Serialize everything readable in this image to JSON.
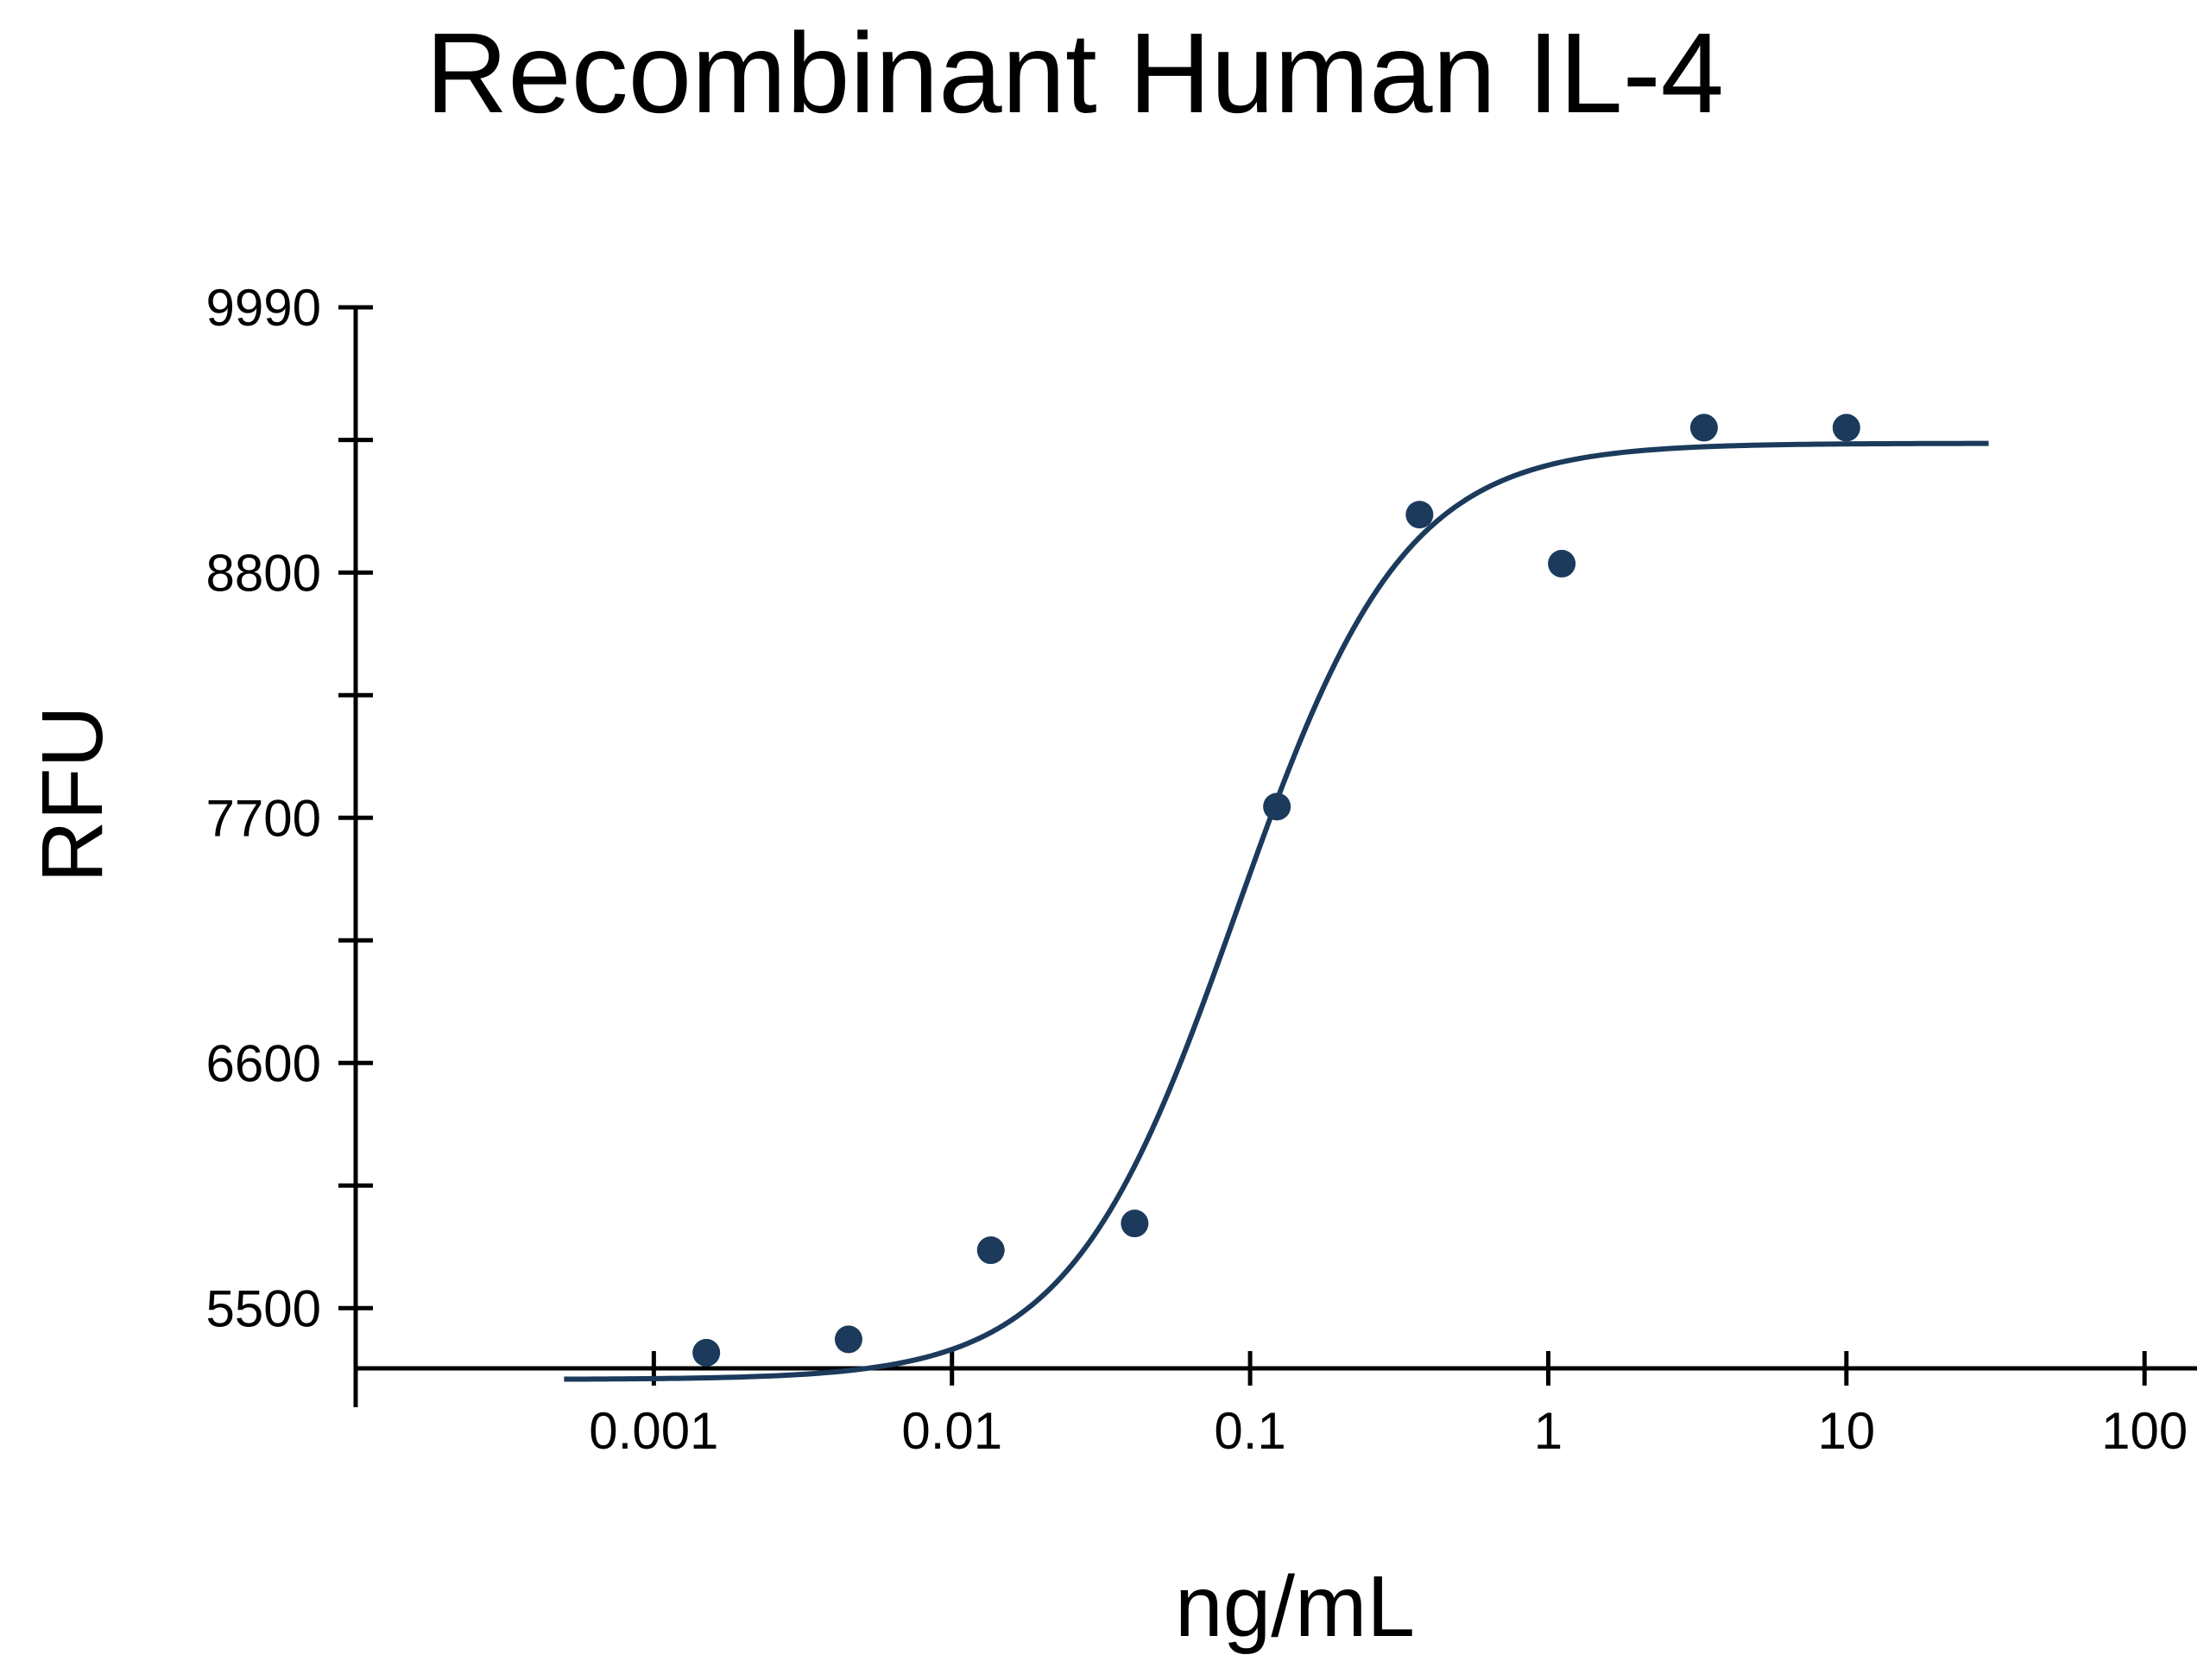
{
  "chart_data": {
    "type": "scatter",
    "title": "Recombinant Human IL-4",
    "xlabel": "ng/mL",
    "ylabel": "RFU",
    "x_scale": "log",
    "xlim": [
      0.0001,
      150
    ],
    "ylim": [
      5230,
      9990
    ],
    "x_ticks": [
      0.001,
      0.01,
      0.1,
      1,
      10,
      100
    ],
    "x_tick_labels": [
      "0.001",
      "0.01",
      "0.1",
      "1",
      "10",
      "100"
    ],
    "y_ticks": [
      5500,
      6600,
      7700,
      8800,
      9990
    ],
    "y_tick_labels": [
      "5500",
      "6600",
      "7700",
      "8800",
      "9990"
    ],
    "y_minor_ticks": [
      6050,
      7150,
      8250,
      9395
    ],
    "grid": false,
    "legend": "none",
    "color": "#1b3a5c",
    "series": [
      {
        "points": [
          {
            "x": 0.0015,
            "y": 5300
          },
          {
            "x": 0.0045,
            "y": 5360
          },
          {
            "x": 0.0135,
            "y": 5760
          },
          {
            "x": 0.041,
            "y": 5880
          },
          {
            "x": 0.123,
            "y": 7750
          },
          {
            "x": 0.37,
            "y": 9060
          },
          {
            "x": 1.11,
            "y": 8840
          },
          {
            "x": 3.33,
            "y": 9450
          },
          {
            "x": 10,
            "y": 9450
          }
        ],
        "fit": {
          "model": "4PL",
          "bottom": 5180,
          "top": 9380,
          "ec50": 0.09,
          "hill": 1.55,
          "x_range": [
            0.0005,
            30
          ]
        }
      }
    ]
  }
}
